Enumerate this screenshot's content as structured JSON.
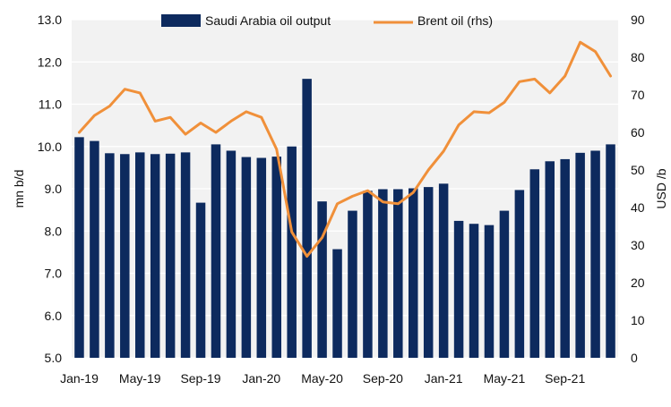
{
  "chart_data": {
    "type": "bar+line",
    "categories": [
      "Jan-19",
      "Feb-19",
      "Mar-19",
      "Apr-19",
      "May-19",
      "Jun-19",
      "Jul-19",
      "Aug-19",
      "Sep-19",
      "Oct-19",
      "Nov-19",
      "Dec-19",
      "Jan-20",
      "Feb-20",
      "Mar-20",
      "Apr-20",
      "May-20",
      "Jun-20",
      "Jul-20",
      "Aug-20",
      "Sep-20",
      "Oct-20",
      "Nov-20",
      "Dec-20",
      "Jan-21",
      "Feb-21",
      "Mar-21",
      "Apr-21",
      "May-21",
      "Jun-21",
      "Jul-21",
      "Aug-21",
      "Sep-21",
      "Oct-21",
      "Nov-21",
      "Dec-21"
    ],
    "x_tick_labels": [
      "Jan-19",
      "May-19",
      "Sep-19",
      "Jan-20",
      "May-20",
      "Sep-20",
      "Jan-21",
      "May-21",
      "Sep-21"
    ],
    "series": [
      {
        "name": "Saudi Arabia oil output",
        "kind": "bar",
        "axis": "left",
        "color": "#0d2a5e",
        "values": [
          10.22,
          10.13,
          9.84,
          9.82,
          9.86,
          9.82,
          9.83,
          9.86,
          8.67,
          10.05,
          9.9,
          9.75,
          9.73,
          9.76,
          10.0,
          11.6,
          8.7,
          7.57,
          8.48,
          8.95,
          8.99,
          8.99,
          9.01,
          9.04,
          9.12,
          8.24,
          8.17,
          8.14,
          8.48,
          8.97,
          9.46,
          9.65,
          9.7,
          9.85,
          9.9,
          10.05
        ]
      },
      {
        "name": "Brent oil (rhs)",
        "kind": "line",
        "axis": "right",
        "color": "#f0903a",
        "values": [
          60,
          64.5,
          67,
          71.5,
          70.5,
          63,
          64,
          59.5,
          62.5,
          60,
          63,
          65.5,
          64,
          55.5,
          33.5,
          27,
          32,
          41,
          43,
          44.5,
          41.5,
          41,
          44,
          50,
          55,
          62,
          65.5,
          65.2,
          68,
          73.5,
          74.2,
          70.5,
          75,
          84,
          81.5,
          75
        ]
      }
    ],
    "y_left": {
      "label": "mn b/d",
      "min": 5.0,
      "max": 13.0,
      "ticks": [
        "5.0",
        "6.0",
        "7.0",
        "8.0",
        "9.0",
        "10.0",
        "11.0",
        "12.0",
        "13.0"
      ]
    },
    "y_right": {
      "label": "USD /b",
      "min": 0,
      "max": 90,
      "ticks": [
        "0",
        "10",
        "20",
        "30",
        "40",
        "50",
        "60",
        "70",
        "80",
        "90"
      ]
    },
    "legend": [
      {
        "label": "Saudi Arabia oil output"
      },
      {
        "label": "Brent oil (rhs)"
      }
    ],
    "legend_position": "top",
    "plot_background": "#f2f2f2"
  }
}
